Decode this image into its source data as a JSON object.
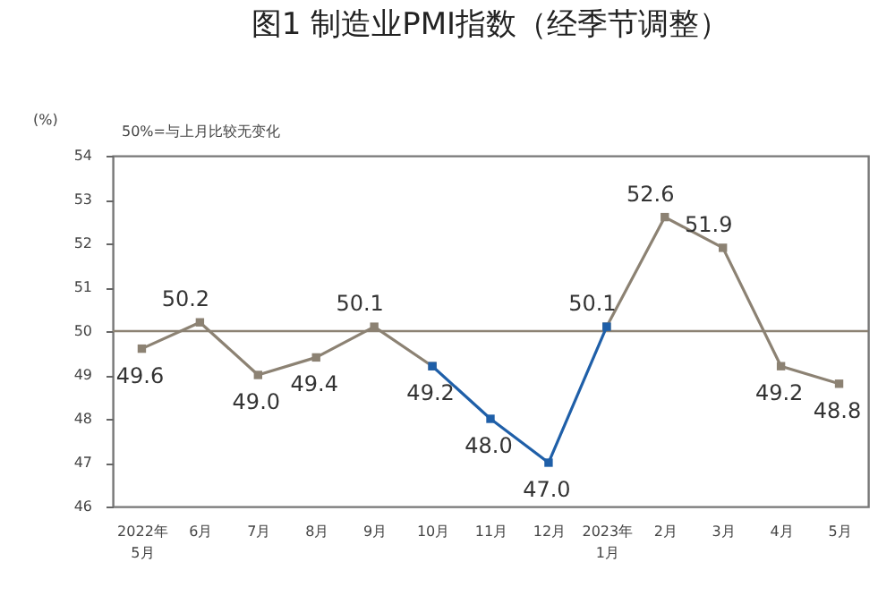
{
  "chart_data": {
    "type": "line",
    "title": "图1 制造业PMI指数（经季节调整）",
    "ylabel": "(%)",
    "annotations": [
      "50%=与上月比较无变化"
    ],
    "categories": [
      "2022年\n5月",
      "6月",
      "7月",
      "8月",
      "9月",
      "10月",
      "11月",
      "12月",
      "2023年\n1月",
      "2月",
      "3月",
      "4月",
      "5月"
    ],
    "series": [
      {
        "color": "#8c8273",
        "values": [
          49.6,
          50.2,
          49.0,
          49.4,
          50.1,
          49.2,
          null,
          null,
          50.1,
          52.6,
          51.9,
          49.2,
          48.8
        ],
        "value_labels": [
          "49.6",
          "50.2",
          "49.0",
          "49.4",
          "50.1",
          "49.2",
          null,
          null,
          "50.1",
          "52.6",
          "51.9",
          "49.2",
          "48.8"
        ]
      },
      {
        "color": "#1f5fa8",
        "values": [
          null,
          null,
          null,
          null,
          null,
          49.2,
          48.0,
          47.0,
          50.1,
          null,
          null,
          null,
          null
        ],
        "value_labels": [
          null,
          null,
          null,
          null,
          null,
          null,
          "48.0",
          "47.0",
          null,
          null,
          null,
          null,
          null
        ]
      }
    ],
    "ylim": [
      46,
      54
    ],
    "yticks": [
      46,
      47,
      48,
      49,
      50,
      51,
      52,
      53,
      54
    ],
    "grid": false,
    "legend": false,
    "marker": "square",
    "line_style": "solid",
    "ref_lines": [
      {
        "axis": "y",
        "value": 50,
        "color": "#8c8273"
      }
    ]
  }
}
